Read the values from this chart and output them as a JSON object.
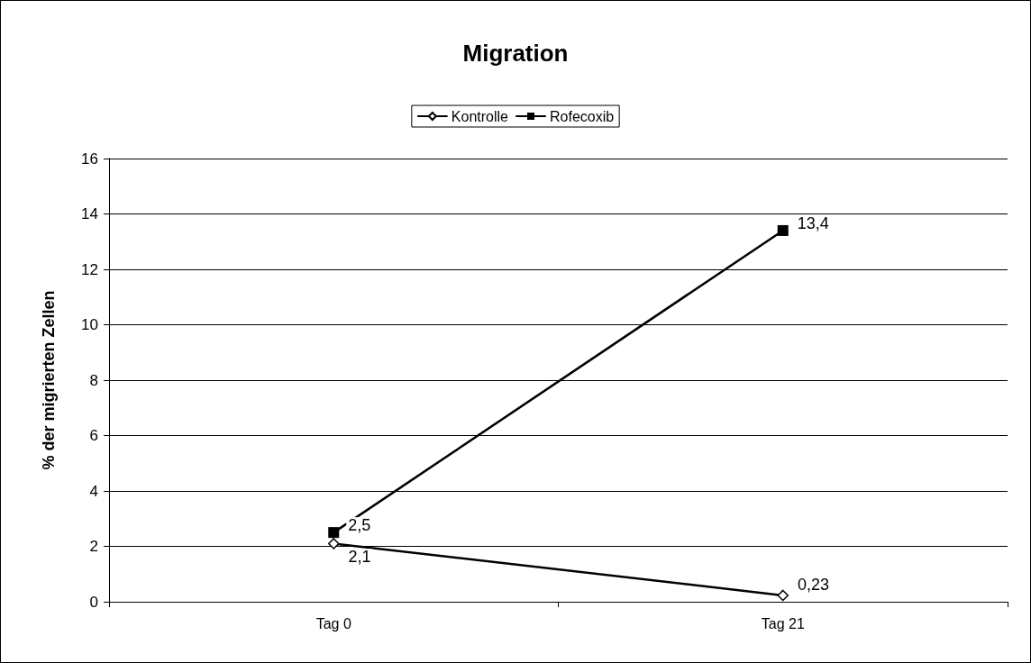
{
  "chart_data": {
    "type": "line",
    "title": "Migration",
    "ylabel": "% der migrierten Zellen",
    "categories": [
      "Tag 0",
      "Tag 21"
    ],
    "series": [
      {
        "name": "Kontrolle",
        "color": "#000000",
        "marker": "diamond",
        "values": [
          2.1,
          0.23
        ],
        "value_labels": [
          "2,1",
          "0,23"
        ]
      },
      {
        "name": "Rofecoxib",
        "color": "#000000",
        "marker": "square",
        "values": [
          2.5,
          13.4
        ],
        "value_labels": [
          "2,5",
          "13,4"
        ]
      }
    ],
    "ylim": [
      0,
      16
    ],
    "yticks": [
      0,
      2,
      4,
      6,
      8,
      10,
      12,
      14,
      16
    ],
    "grid": "y",
    "legend": "top",
    "line_style": "solid"
  }
}
